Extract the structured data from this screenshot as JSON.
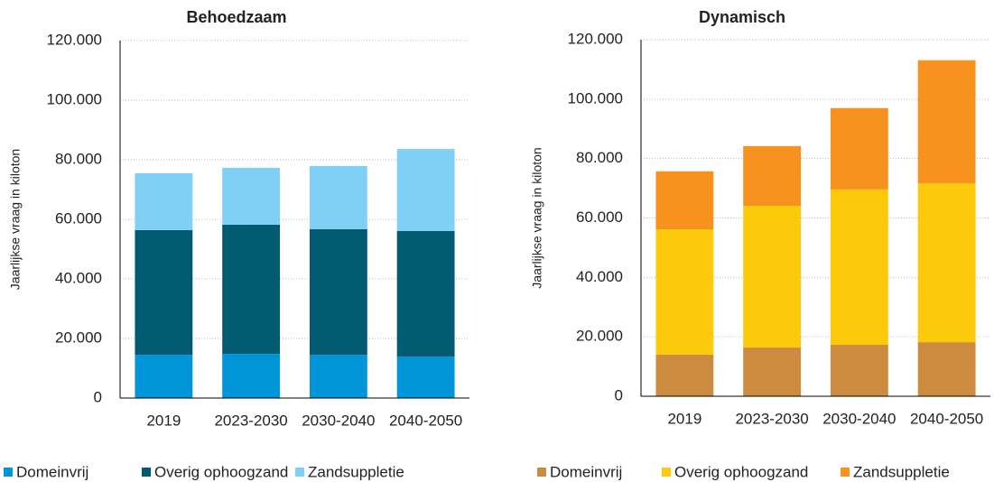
{
  "chart_data": [
    {
      "type": "bar",
      "stacked": true,
      "title": "Behoedzaam",
      "y_label": "Jaarlijkse vraag in kiloton",
      "categories": [
        "2019",
        "2023-2030",
        "2030-2040",
        "2040-2050"
      ],
      "series": [
        {
          "name": "Domeinvrij",
          "color": "#0095d9",
          "values": [
            14500,
            14800,
            14500,
            13900
          ]
        },
        {
          "name": "Overig ophoogzand",
          "color": "#005a70",
          "values": [
            41900,
            43400,
            42200,
            42200
          ]
        },
        {
          "name": "Zandsuppletie",
          "color": "#80d0f5",
          "values": [
            19100,
            19100,
            21200,
            27500
          ]
        }
      ],
      "ylim": [
        0,
        120000
      ],
      "yticks": [
        0,
        {
          "value": 20000,
          "label": "20.000"
        },
        {
          "value": 40000,
          "label": "40.000"
        },
        {
          "value": 60000,
          "label": "60.000"
        },
        {
          "value": 80000,
          "label": "80.000"
        },
        {
          "value": 100000,
          "label": "100.000"
        },
        {
          "value": 120000,
          "label": "120.000"
        }
      ],
      "grid": true,
      "legend": "bottom"
    },
    {
      "type": "bar",
      "stacked": true,
      "title": "Dynamisch",
      "y_label": "Jaarlijkse vraag in kiloton",
      "categories": [
        "2019",
        "2023-2030",
        "2030-2040",
        "2040-2050"
      ],
      "series": [
        {
          "name": "Domeinvrij",
          "color": "#cd8b3f",
          "values": [
            14000,
            16400,
            17300,
            18200
          ]
        },
        {
          "name": "Overig ophoogzand",
          "color": "#fdc90b",
          "values": [
            42200,
            47700,
            52300,
            53500
          ]
        },
        {
          "name": "Zandsuppletie",
          "color": "#f7921e",
          "values": [
            19500,
            20100,
            27400,
            41400
          ]
        }
      ],
      "ylim": [
        0,
        120000
      ],
      "yticks": [
        0,
        {
          "value": 20000,
          "label": "20.000"
        },
        {
          "value": 40000,
          "label": "40.000"
        },
        {
          "value": 60000,
          "label": "60.000"
        },
        {
          "value": 80000,
          "label": "80.000"
        },
        {
          "value": 100000,
          "label": "100.000"
        },
        {
          "value": 120000,
          "label": "120.000"
        }
      ],
      "grid": true,
      "legend": "bottom"
    }
  ]
}
